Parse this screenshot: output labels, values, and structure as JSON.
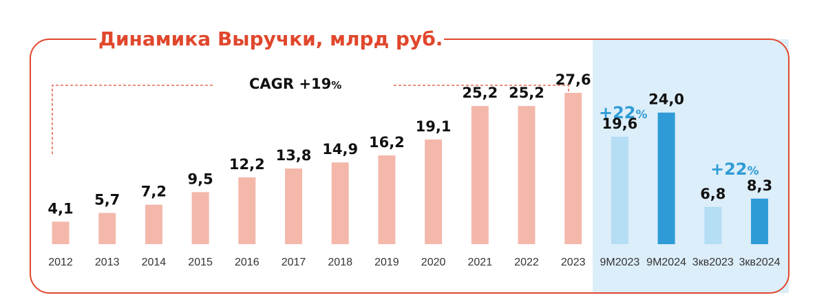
{
  "chart_data": {
    "type": "bar",
    "title": "Динамика Выручки, млрд руб.",
    "xlabel": "",
    "ylabel": "",
    "ylim": [
      0,
      30
    ],
    "grid": false,
    "categories": [
      "2012",
      "2013",
      "2014",
      "2015",
      "2016",
      "2017",
      "2018",
      "2019",
      "2020",
      "2021",
      "2022",
      "2023",
      "9M2023",
      "9M2024",
      "3кв2023",
      "3кв2024"
    ],
    "values": [
      4.1,
      5.7,
      7.2,
      9.5,
      12.2,
      13.8,
      14.9,
      16.2,
      19.1,
      25.2,
      25.2,
      27.6,
      19.6,
      24.0,
      6.8,
      8.3
    ],
    "value_labels": [
      "4,1",
      "5,7",
      "7,2",
      "9,5",
      "12,2",
      "13,8",
      "14,9",
      "16,2",
      "19,1",
      "25,2",
      "25,2",
      "27,6",
      "19,6",
      "24,0",
      "6,8",
      "8,3"
    ],
    "annotations": {
      "cagr": {
        "text": "CAGR +19",
        "pct": "%",
        "from": "2012",
        "to": "2023"
      },
      "growth_9m": {
        "text": "+22",
        "pct": "%"
      },
      "growth_q3": {
        "text": "+22",
        "pct": "%"
      }
    }
  },
  "colors": {
    "accent": "#E0472C",
    "annual_bar": "#F4B8AB",
    "prior_period_bar": "#B5DDF3",
    "current_period_bar": "#2F9BD6",
    "highlight_panel": "#DCEEFA",
    "frame": "#E0472C",
    "growth_text": "#2F9BD6"
  }
}
